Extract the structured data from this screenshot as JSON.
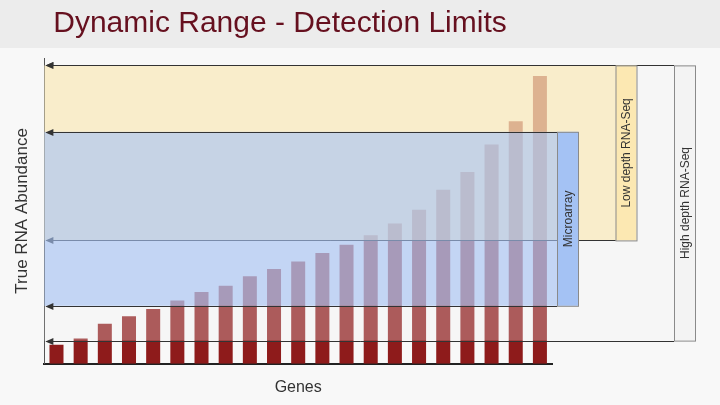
{
  "chart_data": {
    "type": "bar",
    "title": "Dynamic Range - Detection Limits",
    "x_label": "Genes",
    "y_label": "True RNA Abundance",
    "categories": [
      null,
      null,
      null,
      null,
      null,
      null,
      null,
      null,
      null,
      null,
      null,
      null,
      null,
      null,
      null,
      null,
      null,
      null,
      null,
      null,
      null
    ],
    "values": [
      18,
      24,
      38,
      45,
      52,
      60,
      68,
      74,
      83,
      90,
      97,
      105,
      113,
      122,
      133,
      146,
      165,
      182,
      208,
      230,
      273
    ],
    "color": "#8e1b1b",
    "ylim": [
      0,
      290
    ],
    "tick_labels": false,
    "grid": false,
    "bands": [
      {
        "name": "High depth RNA-Seq",
        "low": 22,
        "high": 283,
        "color": "#f3f3f3"
      },
      {
        "name": "Low depth RNA-Seq",
        "low": 117,
        "high": 283,
        "color": "#fce8b2"
      },
      {
        "name": "Microarray",
        "low": 55,
        "high": 220,
        "color": "#a4c2f4"
      }
    ]
  }
}
